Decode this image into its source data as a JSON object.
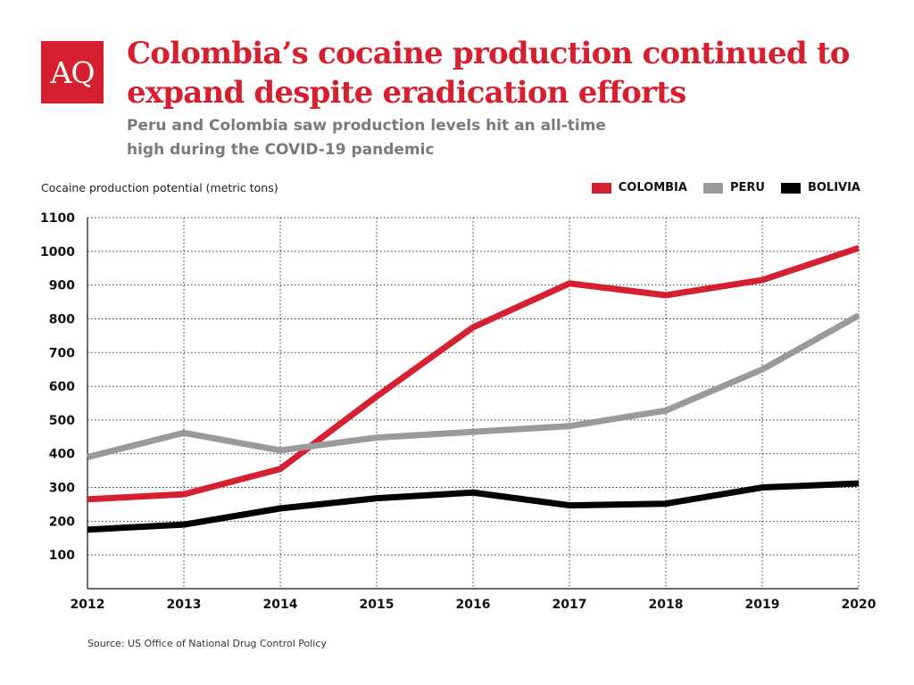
{
  "logo_text": "AQ",
  "title": "Colombia’s cocaine production continued to expand despite eradication efforts",
  "subtitle": "Peru and Colombia saw production levels hit an all-time high during the COVID-19 pandemic",
  "source": "Source: US Office of National Drug Control Policy",
  "colors": {
    "brand": "#d6202f",
    "colombia": "#d6202f",
    "peru": "#9a9a9a",
    "bolivia": "#000000",
    "title": "#d6202f",
    "subtitle": "#7a7a7a"
  },
  "chart_data": {
    "type": "line",
    "ylabel": "Cocaine production potential (metric tons)",
    "xlabel": "",
    "x": [
      "2012",
      "2013",
      "2014",
      "2015",
      "2016",
      "2017",
      "2018",
      "2019",
      "2020"
    ],
    "ylim": [
      0,
      1100
    ],
    "yticks": [
      100,
      200,
      300,
      400,
      500,
      600,
      700,
      800,
      900,
      1000,
      1100
    ],
    "grid": "dotted",
    "legend_position": "top-right",
    "series": [
      {
        "name": "COLOMBIA",
        "color": "#d6202f",
        "values": [
          265,
          280,
          355,
          570,
          775,
          905,
          870,
          915,
          1010
        ]
      },
      {
        "name": "PERU",
        "color": "#9a9a9a",
        "values": [
          390,
          462,
          410,
          448,
          465,
          482,
          528,
          650,
          810
        ]
      },
      {
        "name": "BOLIVIA",
        "color": "#000000",
        "values": [
          175,
          190,
          238,
          268,
          285,
          247,
          252,
          300,
          312
        ]
      }
    ]
  }
}
